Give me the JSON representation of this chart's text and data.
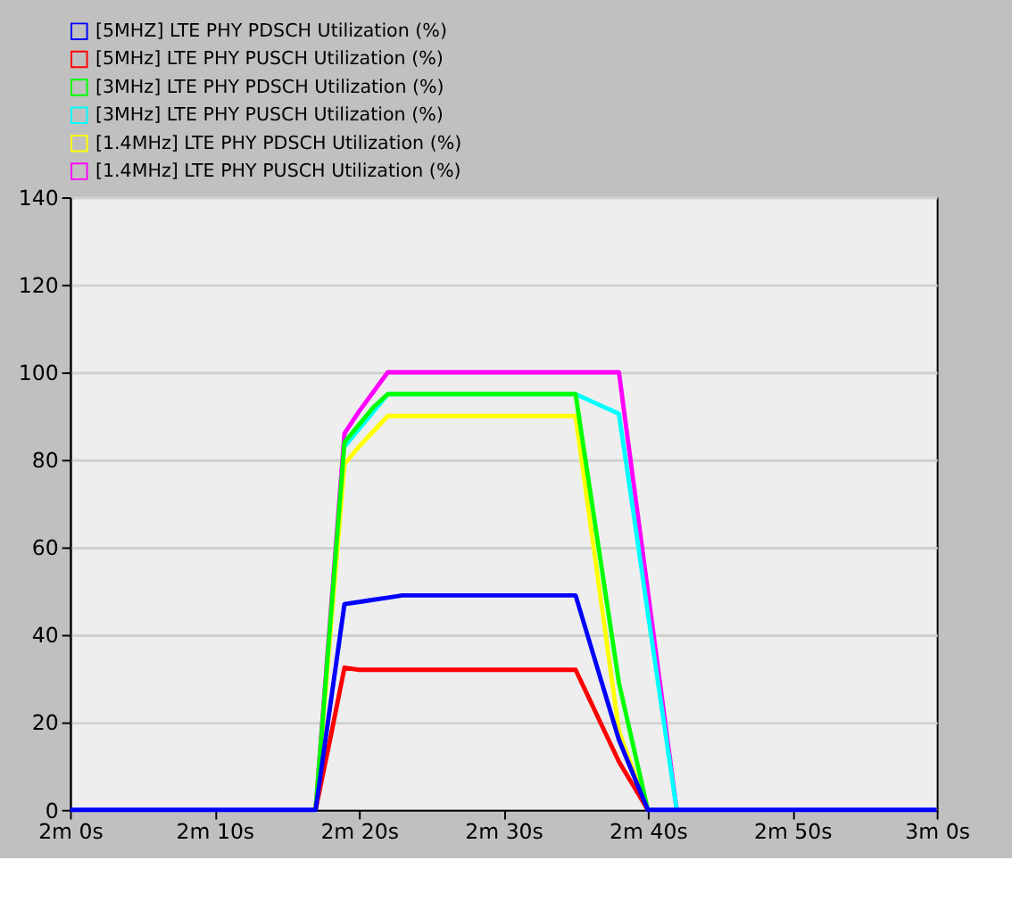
{
  "chart_data": {
    "type": "line",
    "legend": "top",
    "grid": "y",
    "line_style": "solid",
    "marker": "none",
    "categories": [
      "2m 0s",
      null,
      null,
      null,
      null,
      null,
      null,
      null,
      null,
      null,
      "2m 10s",
      null,
      null,
      null,
      null,
      null,
      null,
      null,
      null,
      null,
      "2m 20s",
      null,
      null,
      null,
      null,
      null,
      null,
      null,
      null,
      null,
      "2m 30s",
      null,
      null,
      null,
      null,
      null,
      null,
      null,
      null,
      null,
      "2m 40s",
      null,
      null,
      null,
      null,
      null,
      null,
      null,
      null,
      null,
      "2m 50s",
      null,
      null,
      null,
      null,
      null,
      null,
      null,
      null,
      null,
      "3m 0s"
    ],
    "ylim": [
      0,
      140
    ],
    "yticks": [
      0,
      20,
      40,
      60,
      80,
      100,
      120,
      140
    ],
    "series": [
      {
        "name": "[5MHZ] LTE PHY PDSCH Utilization (%)",
        "color": "#0000ff",
        "values": [
          0,
          0,
          0,
          0,
          0,
          0,
          0,
          0,
          0,
          0,
          0,
          0,
          0,
          0,
          0,
          0,
          0,
          0,
          23.5,
          47,
          47.5,
          48,
          48.5,
          49,
          49,
          49,
          49,
          49,
          49,
          49,
          49,
          49,
          49,
          49,
          49,
          49,
          38,
          27,
          16,
          8,
          0,
          0,
          0,
          0,
          0,
          0,
          0,
          0,
          0,
          0,
          0,
          0,
          0,
          0,
          0,
          0,
          0,
          0,
          0,
          0,
          0
        ]
      },
      {
        "name": "[5MHz] LTE PHY PUSCH Utilization (%)",
        "color": "#ff0000",
        "values": [
          null,
          null,
          null,
          null,
          null,
          null,
          null,
          null,
          null,
          null,
          null,
          null,
          null,
          null,
          null,
          null,
          null,
          0,
          16,
          32.5,
          32,
          32,
          32,
          32,
          32,
          32,
          32,
          32,
          32,
          32,
          32,
          32,
          32,
          32,
          32,
          32,
          25,
          18,
          11,
          5.5,
          0,
          null,
          null,
          null,
          null,
          null,
          null,
          null,
          null,
          null,
          null,
          null,
          null,
          null,
          null,
          null,
          null,
          null,
          null,
          null,
          null
        ]
      },
      {
        "name": "[3MHz] LTE PHY PDSCH Utilization (%)",
        "color": "#00ff00",
        "values": [
          null,
          null,
          null,
          null,
          null,
          null,
          null,
          null,
          null,
          null,
          null,
          null,
          null,
          null,
          null,
          null,
          null,
          0,
          42,
          84,
          88,
          92,
          95,
          95,
          95,
          95,
          95,
          95,
          95,
          95,
          95,
          95,
          95,
          95,
          95,
          95,
          73,
          51,
          29,
          14.5,
          0,
          null,
          null,
          null,
          null,
          null,
          null,
          null,
          null,
          null,
          null,
          null,
          null,
          null,
          null,
          null,
          null,
          null,
          null,
          null,
          null
        ]
      },
      {
        "name": "[3MHz] LTE PHY PUSCH Utilization (%)",
        "color": "#00ffff",
        "values": [
          null,
          null,
          null,
          null,
          null,
          null,
          null,
          null,
          null,
          null,
          null,
          null,
          null,
          null,
          null,
          null,
          null,
          null,
          null,
          83,
          87,
          91,
          95,
          null,
          null,
          null,
          null,
          null,
          null,
          null,
          null,
          null,
          null,
          null,
          null,
          95,
          93.5,
          92,
          90.5,
          68,
          45,
          22.5,
          0,
          null,
          null,
          null,
          null,
          null,
          null,
          null,
          null,
          null,
          null,
          null,
          null,
          null,
          null,
          null,
          null,
          null,
          null
        ]
      },
      {
        "name": "[1.4MHz] LTE PHY PDSCH Utilization (%)",
        "color": "#ffff00",
        "values": [
          null,
          null,
          null,
          null,
          null,
          null,
          null,
          null,
          null,
          null,
          null,
          null,
          null,
          null,
          null,
          null,
          null,
          0,
          39.5,
          79,
          83,
          86.5,
          90,
          90,
          90,
          90,
          90,
          90,
          90,
          90,
          90,
          90,
          90,
          90,
          90,
          90,
          66,
          42,
          18,
          9,
          0,
          null,
          null,
          null,
          null,
          null,
          null,
          null,
          null,
          null,
          null,
          null,
          null,
          null,
          null,
          null,
          null,
          null,
          null,
          null,
          null
        ]
      },
      {
        "name": "[1.4MHz] LTE PHY PUSCH Utilization (%)",
        "color": "#ff00ff",
        "values": [
          null,
          null,
          null,
          null,
          null,
          null,
          null,
          null,
          null,
          null,
          null,
          null,
          null,
          null,
          null,
          null,
          null,
          0,
          43,
          86,
          91,
          95.5,
          100,
          100,
          100,
          100,
          100,
          100,
          100,
          100,
          100,
          100,
          100,
          100,
          100,
          100,
          100,
          100,
          100,
          75,
          50,
          25,
          0,
          null,
          null,
          null,
          null,
          null,
          null,
          null,
          null,
          null,
          null,
          null,
          null,
          null,
          null,
          null,
          null,
          null,
          null
        ]
      }
    ]
  }
}
